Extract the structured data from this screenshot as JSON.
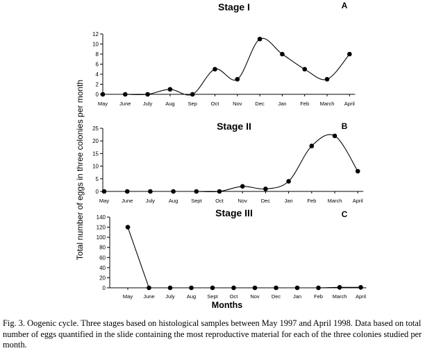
{
  "figure": {
    "y_label": "Total number of eggs in three colonies per month",
    "x_label": "Months",
    "caption": "Fig. 3. Oogenic cycle. Three stages based on histological samples between May 1997 and April 1998. Data based on total number of eggs quantified in the slide containing the most reproductive material for each of the three colonies studied per month."
  },
  "chart_data": [
    {
      "type": "line",
      "title": "Stage I",
      "panel_letter": "A",
      "categories": [
        "May",
        "June",
        "July",
        "Aug",
        "Sep",
        "Oct",
        "Nov",
        "Dec",
        "Jan",
        "Feb",
        "March",
        "April"
      ],
      "values": [
        0,
        0,
        0,
        1,
        0,
        5,
        3,
        11,
        8,
        5,
        3,
        8
      ],
      "yticks": [
        0,
        2,
        4,
        6,
        8,
        10,
        12
      ],
      "ylim": [
        0,
        12
      ],
      "curve": "smooth",
      "grid": false
    },
    {
      "type": "line",
      "title": "Stage II",
      "panel_letter": "B",
      "categories": [
        "May",
        "June",
        "July",
        "Aug",
        "Sept",
        "Oct",
        "Nov",
        "Dec",
        "Jan",
        "Feb",
        "March",
        "April"
      ],
      "values": [
        0,
        0,
        0,
        0,
        0,
        0,
        2,
        1,
        4,
        18,
        22,
        8
      ],
      "yticks": [
        0,
        5,
        10,
        15,
        20,
        25
      ],
      "ylim": [
        0,
        25
      ],
      "curve": "smooth",
      "grid": false
    },
    {
      "type": "line",
      "title": "Stage III",
      "panel_letter": "C",
      "categories": [
        "May",
        "June",
        "July",
        "Aug",
        "Sept",
        "Oct",
        "Nov",
        "Dec",
        "Jan",
        "Feb",
        "March",
        "April"
      ],
      "values": [
        120,
        0,
        0,
        0,
        0,
        0,
        0,
        0,
        0,
        0,
        1,
        1
      ],
      "yticks": [
        0,
        20,
        40,
        60,
        80,
        100,
        120,
        140
      ],
      "ylim": [
        0,
        140
      ],
      "curve": "straight",
      "grid": false
    }
  ]
}
